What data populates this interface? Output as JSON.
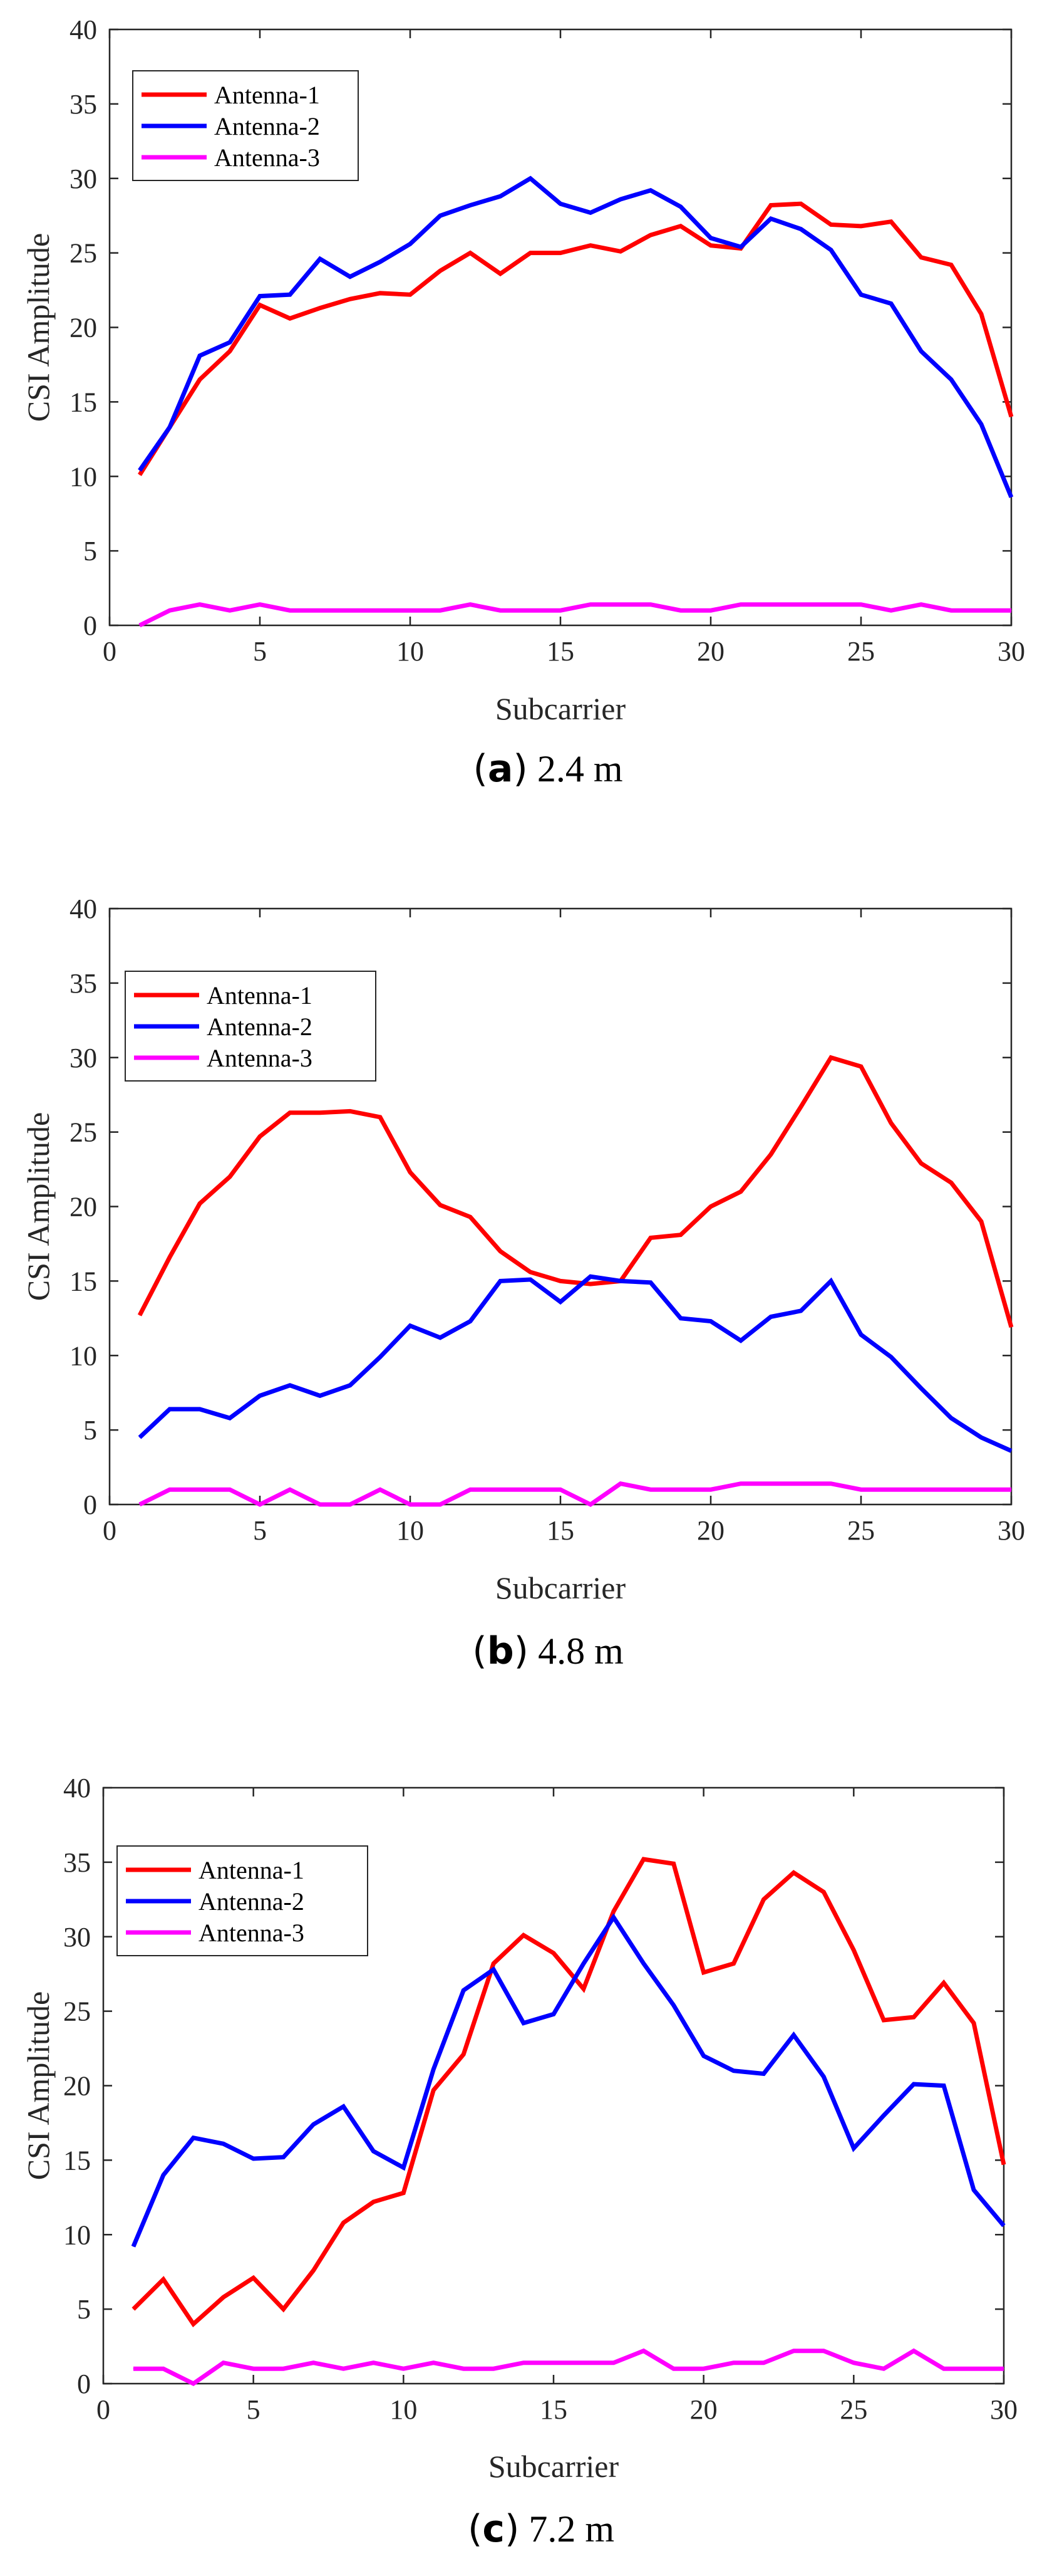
{
  "chart_data": [
    {
      "type": "line",
      "caption_letter": "a",
      "caption_value": "2.4 m",
      "xlabel": "Subcarrier",
      "ylabel": "CSI Amplitude",
      "xlim": [
        0,
        30
      ],
      "ylim": [
        0,
        40
      ],
      "xticks": [
        0,
        5,
        10,
        15,
        20,
        25,
        30
      ],
      "yticks": [
        0,
        5,
        10,
        15,
        20,
        25,
        30,
        35,
        40
      ],
      "legend_position": "top-left",
      "x": [
        1,
        2,
        3,
        4,
        5,
        6,
        7,
        8,
        9,
        10,
        11,
        12,
        13,
        14,
        15,
        16,
        17,
        18,
        19,
        20,
        21,
        22,
        23,
        24,
        25,
        26,
        27,
        28,
        29,
        30
      ],
      "series": [
        {
          "name": "Antenna-1",
          "color": "#ff0000",
          "values": [
            10.1,
            13.3,
            16.5,
            18.4,
            21.5,
            20.6,
            21.3,
            21.9,
            22.3,
            22.2,
            23.8,
            25.0,
            23.6,
            25.0,
            25.0,
            25.5,
            25.1,
            26.2,
            26.8,
            25.5,
            25.3,
            28.2,
            28.3,
            26.9,
            26.8,
            27.1,
            24.7,
            24.2,
            20.9,
            14.0
          ]
        },
        {
          "name": "Antenna-2",
          "color": "#0000ff",
          "values": [
            10.4,
            13.3,
            18.1,
            19.0,
            22.1,
            22.2,
            24.6,
            23.4,
            24.4,
            25.6,
            27.5,
            28.2,
            28.8,
            30.0,
            28.3,
            27.7,
            28.6,
            29.2,
            28.1,
            26.0,
            25.4,
            27.3,
            26.6,
            25.2,
            22.2,
            21.6,
            18.4,
            16.5,
            13.5,
            8.6
          ]
        },
        {
          "name": "Antenna-3",
          "color": "#ff00ff",
          "values": [
            0,
            1,
            1.4,
            1,
            1.4,
            1,
            1,
            1,
            1,
            1,
            1,
            1.4,
            1,
            1,
            1,
            1.4,
            1.4,
            1.4,
            1,
            1,
            1.4,
            1.4,
            1.4,
            1.4,
            1.4,
            1,
            1.4,
            1,
            1,
            1
          ]
        }
      ]
    },
    {
      "type": "line",
      "caption_letter": "b",
      "caption_value": "4.8 m",
      "xlabel": "Subcarrier",
      "ylabel": "CSI Amplitude",
      "xlim": [
        0,
        30
      ],
      "ylim": [
        0,
        40
      ],
      "xticks": [
        0,
        5,
        10,
        15,
        20,
        25,
        30
      ],
      "yticks": [
        0,
        5,
        10,
        15,
        20,
        25,
        30,
        35,
        40
      ],
      "legend_position": "top-left",
      "x": [
        1,
        2,
        3,
        4,
        5,
        6,
        7,
        8,
        9,
        10,
        11,
        12,
        13,
        14,
        15,
        16,
        17,
        18,
        19,
        20,
        21,
        22,
        23,
        24,
        25,
        26,
        27,
        28,
        29,
        30
      ],
      "series": [
        {
          "name": "Antenna-1",
          "color": "#ff0000",
          "values": [
            12.7,
            16.6,
            20.2,
            22.0,
            24.7,
            26.3,
            26.3,
            26.4,
            26.0,
            22.3,
            20.1,
            19.3,
            17.0,
            15.6,
            15.0,
            14.8,
            15.0,
            17.9,
            18.1,
            20.0,
            21.0,
            23.5,
            26.7,
            30.0,
            29.4,
            25.6,
            22.9,
            21.6,
            19.0,
            11.9
          ]
        },
        {
          "name": "Antenna-2",
          "color": "#0000ff",
          "values": [
            4.5,
            6.4,
            6.4,
            5.8,
            7.3,
            8.0,
            7.3,
            8.0,
            9.9,
            12.0,
            11.2,
            12.3,
            15.0,
            15.1,
            13.6,
            15.3,
            15.0,
            14.9,
            12.5,
            12.3,
            11.0,
            12.6,
            13.0,
            15.0,
            11.4,
            9.9,
            7.8,
            5.8,
            4.5,
            3.6
          ]
        },
        {
          "name": "Antenna-3",
          "color": "#ff00ff",
          "values": [
            0,
            1,
            1,
            1,
            0,
            1,
            0,
            0,
            1,
            0,
            0,
            1,
            1,
            1,
            1,
            0,
            1.4,
            1,
            1,
            1,
            1.4,
            1.4,
            1.4,
            1.4,
            1,
            1,
            1,
            1,
            1,
            1
          ]
        }
      ]
    },
    {
      "type": "line",
      "caption_letter": "c",
      "caption_value": "7.2 m",
      "xlabel": "Subcarrier",
      "ylabel": "CSI Amplitude",
      "xlim": [
        0,
        30
      ],
      "ylim": [
        0,
        40
      ],
      "xticks": [
        0,
        5,
        10,
        15,
        20,
        25,
        30
      ],
      "yticks": [
        0,
        5,
        10,
        15,
        20,
        25,
        30,
        35,
        40
      ],
      "legend_position": "top-left",
      "x": [
        1,
        2,
        3,
        4,
        5,
        6,
        7,
        8,
        9,
        10,
        11,
        12,
        13,
        14,
        15,
        16,
        17,
        18,
        19,
        20,
        21,
        22,
        23,
        24,
        25,
        26,
        27,
        28,
        29,
        30
      ],
      "series": [
        {
          "name": "Antenna-1",
          "color": "#ff0000",
          "values": [
            5.0,
            7.0,
            4.0,
            5.8,
            7.1,
            5.0,
            7.6,
            10.8,
            12.2,
            12.8,
            19.7,
            22.1,
            28.2,
            30.1,
            28.9,
            26.5,
            31.7,
            35.2,
            34.9,
            27.6,
            28.2,
            32.5,
            34.3,
            33.0,
            29.1,
            24.4,
            24.6,
            26.9,
            24.2,
            14.7
          ]
        },
        {
          "name": "Antenna-2",
          "color": "#0000ff",
          "values": [
            9.2,
            14.0,
            16.5,
            16.1,
            15.1,
            15.2,
            17.4,
            18.6,
            15.6,
            14.5,
            21.1,
            26.4,
            27.8,
            24.2,
            24.8,
            28.2,
            31.3,
            28.2,
            25.4,
            22.0,
            21.0,
            20.8,
            23.4,
            20.6,
            15.8,
            18.0,
            20.1,
            20.0,
            13.0,
            10.6
          ]
        },
        {
          "name": "Antenna-3",
          "color": "#ff00ff",
          "values": [
            1,
            1,
            0,
            1.4,
            1,
            1,
            1.4,
            1,
            1.4,
            1,
            1.4,
            1,
            1,
            1.4,
            1.4,
            1.4,
            1.4,
            2.2,
            1,
            1,
            1.4,
            1.4,
            2.2,
            2.2,
            1.4,
            1,
            2.2,
            1,
            1,
            1
          ]
        }
      ]
    }
  ]
}
